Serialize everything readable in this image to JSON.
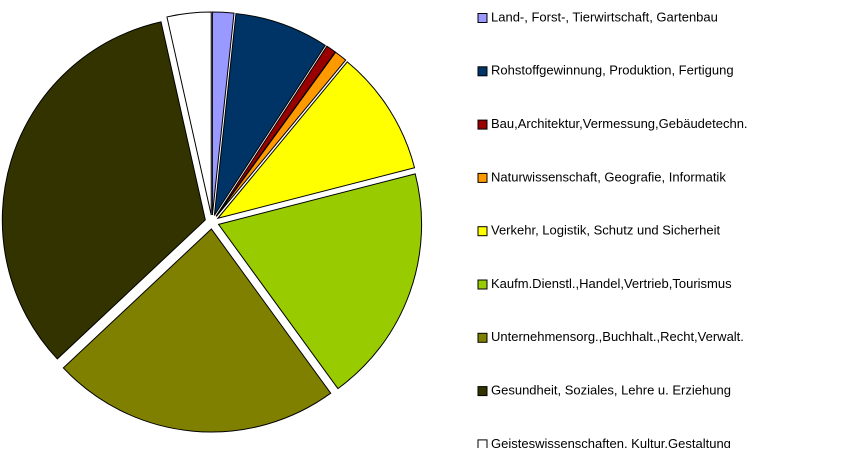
{
  "chart_data": {
    "type": "pie",
    "categories": [
      "Land-, Forst-, Tierwirtschaft, Gartenbau",
      "Rohstoffgewinnung, Produktion, Fertigung",
      "Bau,Architektur,Vermessung,Gebäudetechn.",
      "Naturwissenschaft, Geografie, Informatik",
      "Verkehr, Logistik, Schutz und Sicherheit",
      "Kaufm.Dienstl.,Handel,Vertrieb,Tourismus",
      "Unternehmensorg.,Buchhalt.,Recht,Verwalt.",
      "Gesundheit, Soziales, Lehre u. Erziehung",
      "Geisteswissenschaften, Kultur,Gestaltung"
    ],
    "values": [
      1.7,
      7.5,
      0.8,
      1,
      10,
      19,
      23,
      33.5,
      3.5
    ],
    "colors": [
      "#9999ff",
      "#003366",
      "#990000",
      "#ff9900",
      "#ffff00",
      "#99cc00",
      "#808000",
      "#333300",
      "#ffffff"
    ],
    "legend": "right"
  }
}
